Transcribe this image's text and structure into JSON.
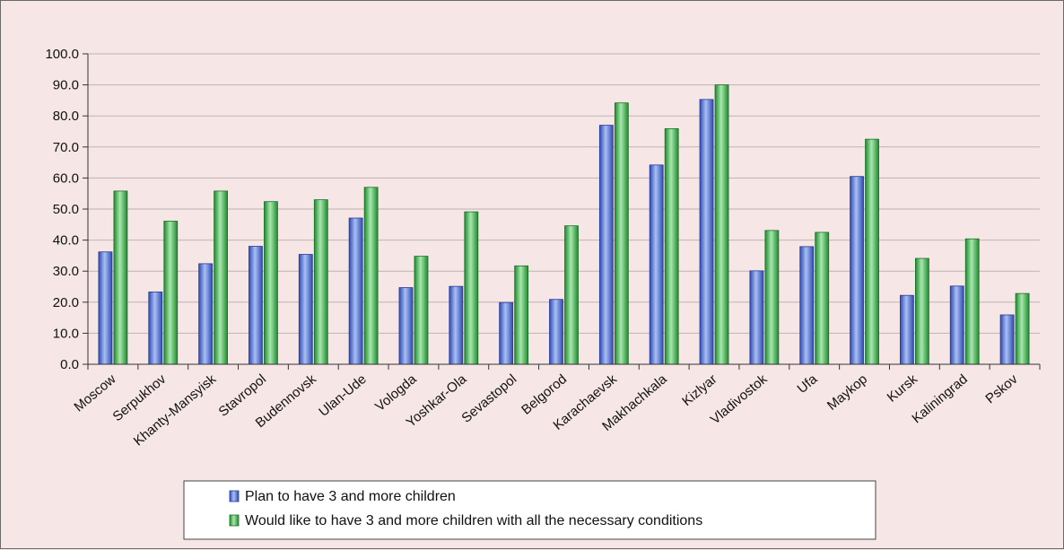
{
  "chart_data": {
    "type": "bar",
    "categories": [
      "Moscow",
      "Serpukhov",
      "Khanty-Mansyisk",
      "Stavropol",
      "Budennovsk",
      "Ulan-Ude",
      "Vologda",
      "Yoshkar-Ola",
      "Sevastopol",
      "Belgorod",
      "Karachaevsk",
      "Makhachkala",
      "Kizlyar",
      "Vladivostok",
      "Ufa",
      "Maykop",
      "Kursk",
      "Kaliningrad",
      "Pskov"
    ],
    "series": [
      {
        "name": "Plan to have 3 and more children",
        "color": "#4f6fd0",
        "values": [
          36.2,
          23.3,
          32.4,
          38.0,
          35.4,
          47.1,
          24.7,
          25.1,
          19.9,
          20.9,
          77.0,
          64.2,
          85.3,
          30.1,
          37.9,
          60.5,
          22.2,
          25.2,
          15.9
        ]
      },
      {
        "name": "Would like to have 3 and more children with all the necessary conditions",
        "color": "#35a845",
        "values": [
          55.8,
          46.1,
          55.8,
          52.4,
          53.0,
          57.0,
          34.8,
          49.1,
          31.7,
          44.6,
          84.2,
          75.9,
          90.0,
          43.1,
          42.5,
          72.5,
          34.1,
          40.4,
          22.8
        ]
      }
    ],
    "yticks": [
      "0.0",
      "10.0",
      "20.0",
      "30.0",
      "40.0",
      "50.0",
      "60.0",
      "70.0",
      "80.0",
      "90.0",
      "100.0"
    ],
    "ylim": [
      0,
      100
    ],
    "grid": true,
    "legend": "bottom-center"
  }
}
